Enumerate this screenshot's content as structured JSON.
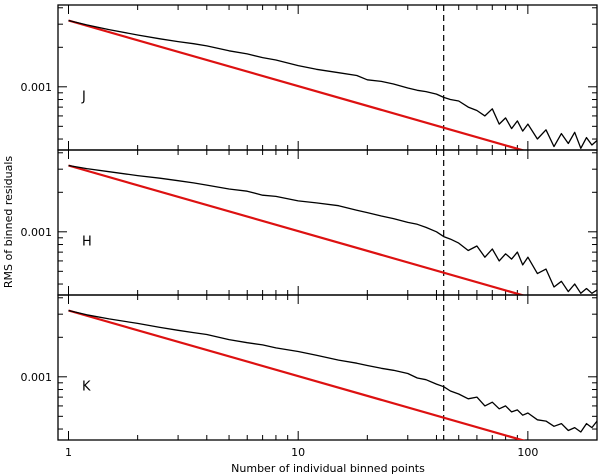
{
  "chart_data": {
    "type": "line",
    "xlabel": "Number of individual binned points",
    "ylabel": "RMS of binned residuals",
    "xscale": "log",
    "yscale": "log",
    "xlim": [
      0.9,
      200
    ],
    "ylim": [
      0.00033,
      0.0042
    ],
    "x_ticks": [
      {
        "value": 1,
        "label": "1"
      },
      {
        "value": 10,
        "label": "10"
      },
      {
        "value": 100,
        "label": "100"
      }
    ],
    "y_tick": {
      "value": 0.001,
      "label": "0.001"
    },
    "reference_line_x": 43,
    "series_colors": {
      "measured": "#000000",
      "expected": "#dd1111",
      "reference": "#000000"
    },
    "panels": [
      {
        "label": "J",
        "expected_start": 0.0032,
        "measured": [
          [
            1,
            0.0032
          ],
          [
            1.2,
            0.00296
          ],
          [
            1.5,
            0.00273
          ],
          [
            2,
            0.00248
          ],
          [
            2.5,
            0.00232
          ],
          [
            3,
            0.00221
          ],
          [
            3.5,
            0.00213
          ],
          [
            4,
            0.00205
          ],
          [
            5,
            0.00188
          ],
          [
            6,
            0.00178
          ],
          [
            7,
            0.00167
          ],
          [
            8,
            0.0016
          ],
          [
            10,
            0.00145
          ],
          [
            12,
            0.00136
          ],
          [
            15,
            0.00128
          ],
          [
            18,
            0.00122
          ],
          [
            20,
            0.00113
          ],
          [
            23,
            0.0011
          ],
          [
            26,
            0.00105
          ],
          [
            30,
            0.00098
          ],
          [
            33,
            0.00094
          ],
          [
            36,
            0.00092
          ],
          [
            40,
            0.00088
          ],
          [
            43,
            0.00083
          ],
          [
            46,
            0.0008
          ],
          [
            50,
            0.00078
          ],
          [
            55,
            0.0007
          ],
          [
            60,
            0.00066
          ],
          [
            65,
            0.0006
          ],
          [
            70,
            0.00068
          ],
          [
            75,
            0.00052
          ],
          [
            80,
            0.00058
          ],
          [
            85,
            0.00048
          ],
          [
            90,
            0.00055
          ],
          [
            95,
            0.00046
          ],
          [
            100,
            0.00052
          ],
          [
            110,
            0.0004
          ],
          [
            120,
            0.00047
          ],
          [
            130,
            0.00035
          ],
          [
            140,
            0.00044
          ],
          [
            150,
            0.00037
          ],
          [
            160,
            0.00045
          ],
          [
            170,
            0.00034
          ],
          [
            180,
            0.00041
          ],
          [
            190,
            0.00036
          ],
          [
            200,
            0.00039
          ]
        ]
      },
      {
        "label": "H",
        "expected_start": 0.0032,
        "measured": [
          [
            1,
            0.0032
          ],
          [
            1.2,
            0.00303
          ],
          [
            1.5,
            0.00287
          ],
          [
            2,
            0.00268
          ],
          [
            2.5,
            0.00256
          ],
          [
            3,
            0.00245
          ],
          [
            3.5,
            0.00236
          ],
          [
            4,
            0.00227
          ],
          [
            5,
            0.00212
          ],
          [
            6,
            0.00204
          ],
          [
            7,
            0.0019
          ],
          [
            8,
            0.00186
          ],
          [
            10,
            0.00172
          ],
          [
            12,
            0.00166
          ],
          [
            15,
            0.00158
          ],
          [
            18,
            0.00146
          ],
          [
            20,
            0.0014
          ],
          [
            23,
            0.00132
          ],
          [
            26,
            0.00126
          ],
          [
            30,
            0.00118
          ],
          [
            33,
            0.00114
          ],
          [
            36,
            0.00108
          ],
          [
            40,
            0.001
          ],
          [
            43,
            0.00092
          ],
          [
            46,
            0.00088
          ],
          [
            50,
            0.00082
          ],
          [
            55,
            0.00072
          ],
          [
            60,
            0.00078
          ],
          [
            65,
            0.00064
          ],
          [
            70,
            0.00074
          ],
          [
            75,
            0.0006
          ],
          [
            80,
            0.00068
          ],
          [
            85,
            0.00062
          ],
          [
            90,
            0.0007
          ],
          [
            95,
            0.00056
          ],
          [
            100,
            0.00064
          ],
          [
            110,
            0.00048
          ],
          [
            120,
            0.00052
          ],
          [
            130,
            0.00038
          ],
          [
            140,
            0.00042
          ],
          [
            150,
            0.00035
          ],
          [
            160,
            0.0004
          ],
          [
            170,
            0.00034
          ],
          [
            180,
            0.00037
          ],
          [
            190,
            0.00034
          ],
          [
            200,
            0.00036
          ]
        ]
      },
      {
        "label": "K",
        "expected_start": 0.0032,
        "measured": [
          [
            1,
            0.0032
          ],
          [
            1.2,
            0.00297
          ],
          [
            1.5,
            0.00276
          ],
          [
            2,
            0.00255
          ],
          [
            2.5,
            0.00238
          ],
          [
            3,
            0.00226
          ],
          [
            3.5,
            0.00217
          ],
          [
            4,
            0.0021
          ],
          [
            5,
            0.00192
          ],
          [
            6,
            0.00182
          ],
          [
            7,
            0.00175
          ],
          [
            8,
            0.00166
          ],
          [
            10,
            0.00156
          ],
          [
            12,
            0.00146
          ],
          [
            15,
            0.00134
          ],
          [
            18,
            0.00127
          ],
          [
            20,
            0.00122
          ],
          [
            23,
            0.00116
          ],
          [
            26,
            0.00112
          ],
          [
            30,
            0.00106
          ],
          [
            33,
            0.00098
          ],
          [
            36,
            0.00095
          ],
          [
            40,
            0.00088
          ],
          [
            43,
            0.00084
          ],
          [
            46,
            0.00078
          ],
          [
            50,
            0.00074
          ],
          [
            55,
            0.00068
          ],
          [
            60,
            0.0007
          ],
          [
            65,
            0.0006
          ],
          [
            70,
            0.00064
          ],
          [
            75,
            0.00057
          ],
          [
            80,
            0.0006
          ],
          [
            85,
            0.00054
          ],
          [
            90,
            0.00056
          ],
          [
            95,
            0.00051
          ],
          [
            100,
            0.00053
          ],
          [
            110,
            0.00047
          ],
          [
            120,
            0.00046
          ],
          [
            130,
            0.00042
          ],
          [
            140,
            0.00044
          ],
          [
            150,
            0.00039
          ],
          [
            160,
            0.00041
          ],
          [
            170,
            0.00038
          ],
          [
            180,
            0.00044
          ],
          [
            190,
            0.00041
          ],
          [
            200,
            0.00046
          ]
        ]
      }
    ]
  }
}
